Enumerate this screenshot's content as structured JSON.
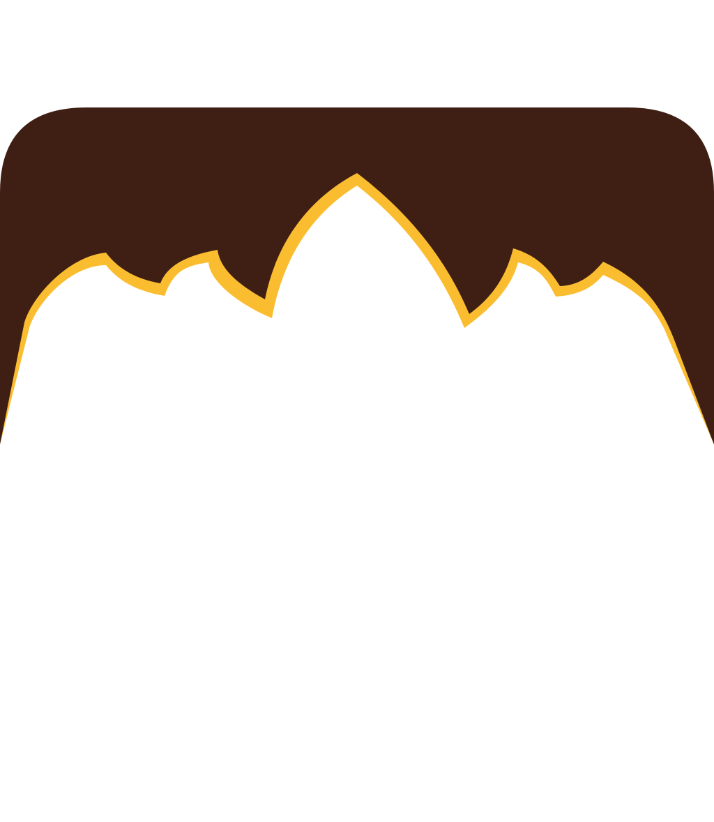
{
  "graphic": {
    "kind": "decorative-onion-arch-frame",
    "colors": {
      "background": "#ffffff",
      "frame_fill": "#3f1e14",
      "outline": "#fbbd30",
      "inner_fill": "#ffffff"
    }
  }
}
